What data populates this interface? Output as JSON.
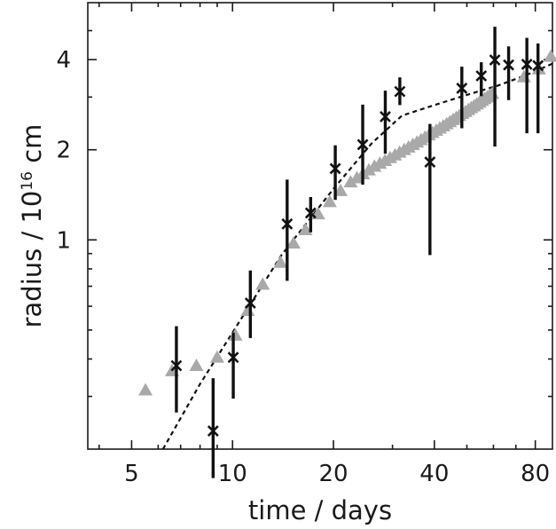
{
  "chart_data": {
    "type": "scatter",
    "title": "",
    "xlabel": "time / days",
    "ylabel": {
      "prefix": "radius / 10",
      "superscript": "16",
      "suffix": " cm"
    },
    "x_scale": "log",
    "y_scale": "log",
    "xlim": [
      3.7,
      90
    ],
    "ylim": [
      0.2,
      6.2
    ],
    "x_ticks": [
      5,
      10,
      20,
      40,
      80
    ],
    "x_tick_labels": [
      "5",
      "10",
      "20",
      "40",
      "80"
    ],
    "y_ticks": [
      1,
      2,
      4
    ],
    "y_tick_labels": [
      "1",
      "2",
      "4"
    ],
    "y_minor_ticks": [
      0.3,
      0.4,
      0.5,
      0.6,
      0.7,
      0.8,
      0.9,
      3,
      5
    ],
    "x_minor_ticks": [
      4,
      6,
      7,
      8,
      9,
      30,
      50,
      60,
      70
    ],
    "grid": false,
    "legend": "none",
    "series": [
      {
        "marker": "triangle",
        "color": "#a9a9a9",
        "points": [
          {
            "x": 5.5,
            "y": 0.315
          },
          {
            "x": 6.6,
            "y": 0.365
          },
          {
            "x": 7.8,
            "y": 0.38
          },
          {
            "x": 9.0,
            "y": 0.405
          },
          {
            "x": 10.2,
            "y": 0.48
          },
          {
            "x": 11.1,
            "y": 0.58
          },
          {
            "x": 12.3,
            "y": 0.71
          },
          {
            "x": 13.9,
            "y": 0.84
          },
          {
            "x": 15.2,
            "y": 0.975
          },
          {
            "x": 16.5,
            "y": 1.08
          },
          {
            "x": 18.0,
            "y": 1.22
          },
          {
            "x": 19.5,
            "y": 1.34
          },
          {
            "x": 21.0,
            "y": 1.46
          },
          {
            "x": 22.5,
            "y": 1.56
          },
          {
            "x": 23.5,
            "y": 1.61
          },
          {
            "x": 24.5,
            "y": 1.66
          },
          {
            "x": 25.5,
            "y": 1.71
          },
          {
            "x": 26.5,
            "y": 1.76
          },
          {
            "x": 27.5,
            "y": 1.8
          },
          {
            "x": 28.5,
            "y": 1.84
          },
          {
            "x": 29.5,
            "y": 1.88
          },
          {
            "x": 30.5,
            "y": 1.92
          },
          {
            "x": 31.5,
            "y": 1.96
          },
          {
            "x": 32.5,
            "y": 2.0
          },
          {
            "x": 33.5,
            "y": 2.04
          },
          {
            "x": 34.5,
            "y": 2.08
          },
          {
            "x": 35.5,
            "y": 2.12
          },
          {
            "x": 36.5,
            "y": 2.16
          },
          {
            "x": 37.5,
            "y": 2.2
          },
          {
            "x": 38.5,
            "y": 2.24
          },
          {
            "x": 39.5,
            "y": 2.28
          },
          {
            "x": 40.5,
            "y": 2.32
          },
          {
            "x": 41.5,
            "y": 2.36
          },
          {
            "x": 42.5,
            "y": 2.4
          },
          {
            "x": 43.5,
            "y": 2.44
          },
          {
            "x": 44.5,
            "y": 2.48
          },
          {
            "x": 45.5,
            "y": 2.52
          },
          {
            "x": 46.5,
            "y": 2.56
          },
          {
            "x": 47.5,
            "y": 2.6
          },
          {
            "x": 48.5,
            "y": 2.64
          },
          {
            "x": 49.5,
            "y": 2.68
          },
          {
            "x": 50.5,
            "y": 2.72
          },
          {
            "x": 51.5,
            "y": 2.76
          },
          {
            "x": 52.5,
            "y": 2.8
          },
          {
            "x": 53.5,
            "y": 2.84
          },
          {
            "x": 54.5,
            "y": 2.88
          },
          {
            "x": 55.5,
            "y": 2.92
          },
          {
            "x": 56.5,
            "y": 2.96
          },
          {
            "x": 57.5,
            "y": 3.0
          },
          {
            "x": 58.5,
            "y": 3.04
          },
          {
            "x": 59.5,
            "y": 3.08
          },
          {
            "x": 74.0,
            "y": 3.5
          },
          {
            "x": 82.0,
            "y": 3.72
          },
          {
            "x": 89.0,
            "y": 4.1
          }
        ]
      },
      {
        "marker": "x",
        "color": "#111111",
        "error_bars": true,
        "points": [
          {
            "x": 6.8,
            "y": 0.38,
            "lo": 0.265,
            "hi": 0.515
          },
          {
            "x": 8.75,
            "y": 0.23,
            "lo": 0.16,
            "hi": 0.345
          },
          {
            "x": 10.05,
            "y": 0.405,
            "lo": 0.295,
            "hi": 0.49
          },
          {
            "x": 11.3,
            "y": 0.615,
            "lo": 0.47,
            "hi": 0.79
          },
          {
            "x": 14.55,
            "y": 1.13,
            "lo": 0.73,
            "hi": 1.59
          },
          {
            "x": 17.1,
            "y": 1.23,
            "lo": 1.06,
            "hi": 1.39
          },
          {
            "x": 20.25,
            "y": 1.73,
            "lo": 1.36,
            "hi": 2.07
          },
          {
            "x": 24.45,
            "y": 2.08,
            "lo": 1.53,
            "hi": 2.83
          },
          {
            "x": 28.55,
            "y": 2.58,
            "lo": 1.94,
            "hi": 3.15
          },
          {
            "x": 31.55,
            "y": 3.13,
            "lo": 2.82,
            "hi": 3.49
          },
          {
            "x": 38.8,
            "y": 1.82,
            "lo": 0.89,
            "hi": 2.44
          },
          {
            "x": 48.3,
            "y": 3.21,
            "lo": 2.36,
            "hi": 3.79
          },
          {
            "x": 55.2,
            "y": 3.53,
            "lo": 3.02,
            "hi": 3.92
          },
          {
            "x": 60.6,
            "y": 3.99,
            "lo": 2.05,
            "hi": 5.15
          },
          {
            "x": 66.6,
            "y": 3.84,
            "lo": 2.93,
            "hi": 4.43
          },
          {
            "x": 75.5,
            "y": 3.86,
            "lo": 2.27,
            "hi": 4.73
          },
          {
            "x": 81.5,
            "y": 3.82,
            "lo": 2.27,
            "hi": 4.53
          }
        ]
      },
      {
        "line": "dashed",
        "color": "#111111",
        "points": [
          {
            "x": 6.2,
            "y": 0.2
          },
          {
            "x": 8.0,
            "y": 0.33
          },
          {
            "x": 10.0,
            "y": 0.49
          },
          {
            "x": 14.0,
            "y": 0.89
          },
          {
            "x": 20.0,
            "y": 1.48
          },
          {
            "x": 26.0,
            "y": 2.1
          },
          {
            "x": 32.0,
            "y": 2.6
          },
          {
            "x": 40.0,
            "y": 2.82
          },
          {
            "x": 50.0,
            "y": 3.05
          },
          {
            "x": 62.0,
            "y": 3.28
          },
          {
            "x": 75.0,
            "y": 3.55
          },
          {
            "x": 90.0,
            "y": 3.88
          }
        ]
      }
    ]
  }
}
